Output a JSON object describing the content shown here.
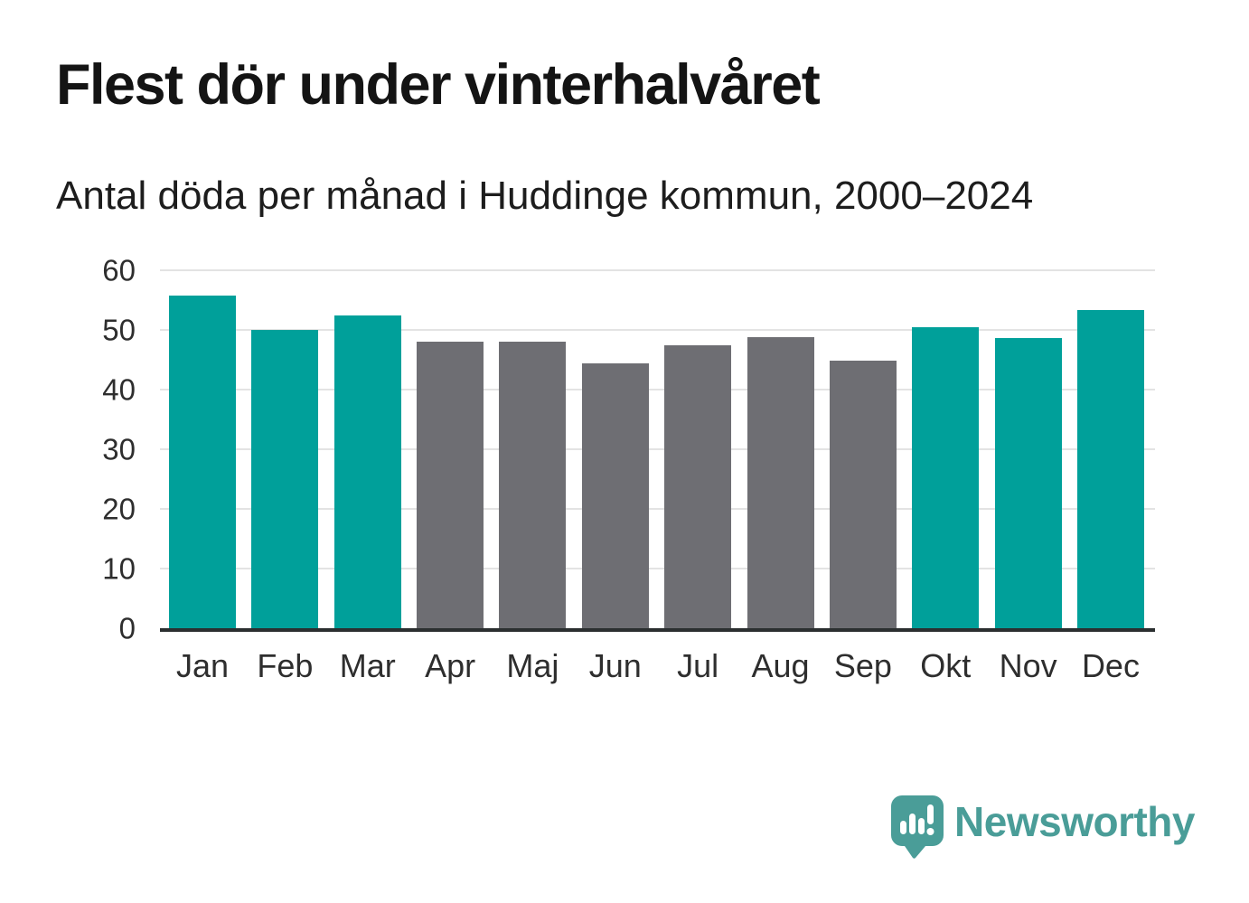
{
  "chart_data": {
    "type": "bar",
    "title": "Flest dör under vinterhalvåret",
    "subtitle": "Antal döda per månad i Huddinge kommun, 2000–2024",
    "categories": [
      "Jan",
      "Feb",
      "Mar",
      "Apr",
      "Maj",
      "Jun",
      "Jul",
      "Aug",
      "Sep",
      "Okt",
      "Nov",
      "Dec"
    ],
    "values": [
      55.8,
      50.0,
      52.4,
      48.1,
      48.0,
      44.4,
      47.4,
      48.8,
      44.8,
      50.4,
      48.6,
      53.4
    ],
    "bar_colors": [
      "#00a09a",
      "#00a09a",
      "#00a09a",
      "#6e6e73",
      "#6e6e73",
      "#6e6e73",
      "#6e6e73",
      "#6e6e73",
      "#6e6e73",
      "#00a09a",
      "#00a09a",
      "#00a09a"
    ],
    "color_meaning": {
      "winter_half_year": "#00a09a",
      "summer_half_year": "#6e6e73"
    },
    "xlabel": "",
    "ylabel": "",
    "ylim": [
      0,
      60
    ],
    "yticks": [
      0,
      10,
      20,
      30,
      40,
      50,
      60
    ],
    "grid": "horizontal",
    "legend": "none"
  },
  "colors": {
    "background": "#ffffff",
    "title_text": "#141414",
    "axis_text": "#2e2e2e",
    "gridline": "#e3e3e3",
    "axis_line": "#2b2f30"
  },
  "footer": {
    "brand": "Newsworthy",
    "brand_color": "#4a9d98",
    "logo_icon": "speech-bubble-with-bar-chart-and-exclamation"
  }
}
